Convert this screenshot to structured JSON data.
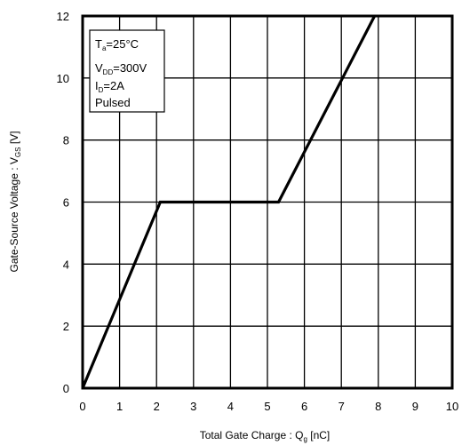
{
  "chart_data": {
    "type": "line",
    "xlim": [
      0,
      10
    ],
    "ylim": [
      0,
      12
    ],
    "x_ticks": [
      "0",
      "1",
      "2",
      "3",
      "4",
      "5",
      "6",
      "7",
      "8",
      "9",
      "10"
    ],
    "y_ticks": [
      "0",
      "2",
      "4",
      "6",
      "8",
      "10",
      "12"
    ],
    "grid": true,
    "xlabel": {
      "main": "Total Gate Charge : Q",
      "sub": "g",
      "unit": "  [nC]"
    },
    "ylabel": {
      "main": "Gate-Source Voltage : V",
      "sub": "GS",
      "unit": " [V]"
    },
    "series": [
      {
        "x": [
          0,
          2.1,
          5.3,
          7.9
        ],
        "y": [
          0,
          6,
          6,
          12
        ]
      }
    ],
    "conditions": {
      "ta": {
        "main": "T",
        "sub": "a",
        "rest": "=25°C"
      },
      "vdd": {
        "main": "V",
        "sub": "DD",
        "rest": "=300V"
      },
      "id": {
        "main": "I",
        "sub": "D",
        "rest": "=2A"
      },
      "mode": "Pulsed"
    }
  }
}
